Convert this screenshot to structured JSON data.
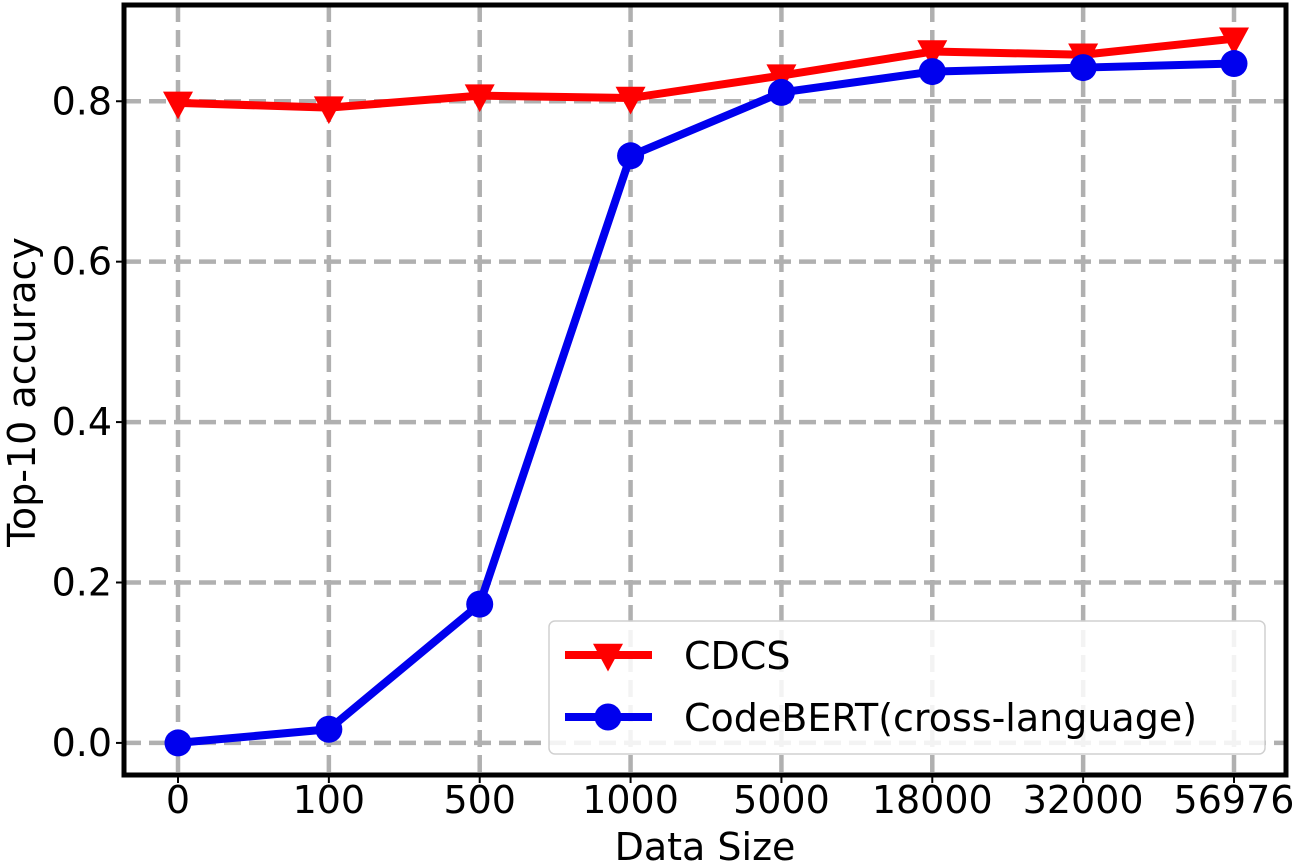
{
  "chart_data": {
    "type": "line",
    "xlabel": "Data Size",
    "ylabel": "Top-10 accuracy",
    "categories": [
      "0",
      "100",
      "500",
      "1000",
      "5000",
      "18000",
      "32000",
      "56976"
    ],
    "ylim": [
      -0.04,
      0.92
    ],
    "yticks": [
      "0.0",
      "0.2",
      "0.4",
      "0.6",
      "0.8"
    ],
    "grid": true,
    "legend_position": "lower-right",
    "series": [
      {
        "name": "CDCS",
        "color": "#ff0000",
        "marker": "triangle-down",
        "values": [
          0.798,
          0.792,
          0.807,
          0.804,
          0.832,
          0.862,
          0.858,
          0.878
        ]
      },
      {
        "name": "CodeBERT(cross-language)",
        "color": "#0000ee",
        "marker": "circle",
        "values": [
          0.0,
          0.017,
          0.173,
          0.732,
          0.811,
          0.837,
          0.842,
          0.847
        ]
      }
    ]
  }
}
